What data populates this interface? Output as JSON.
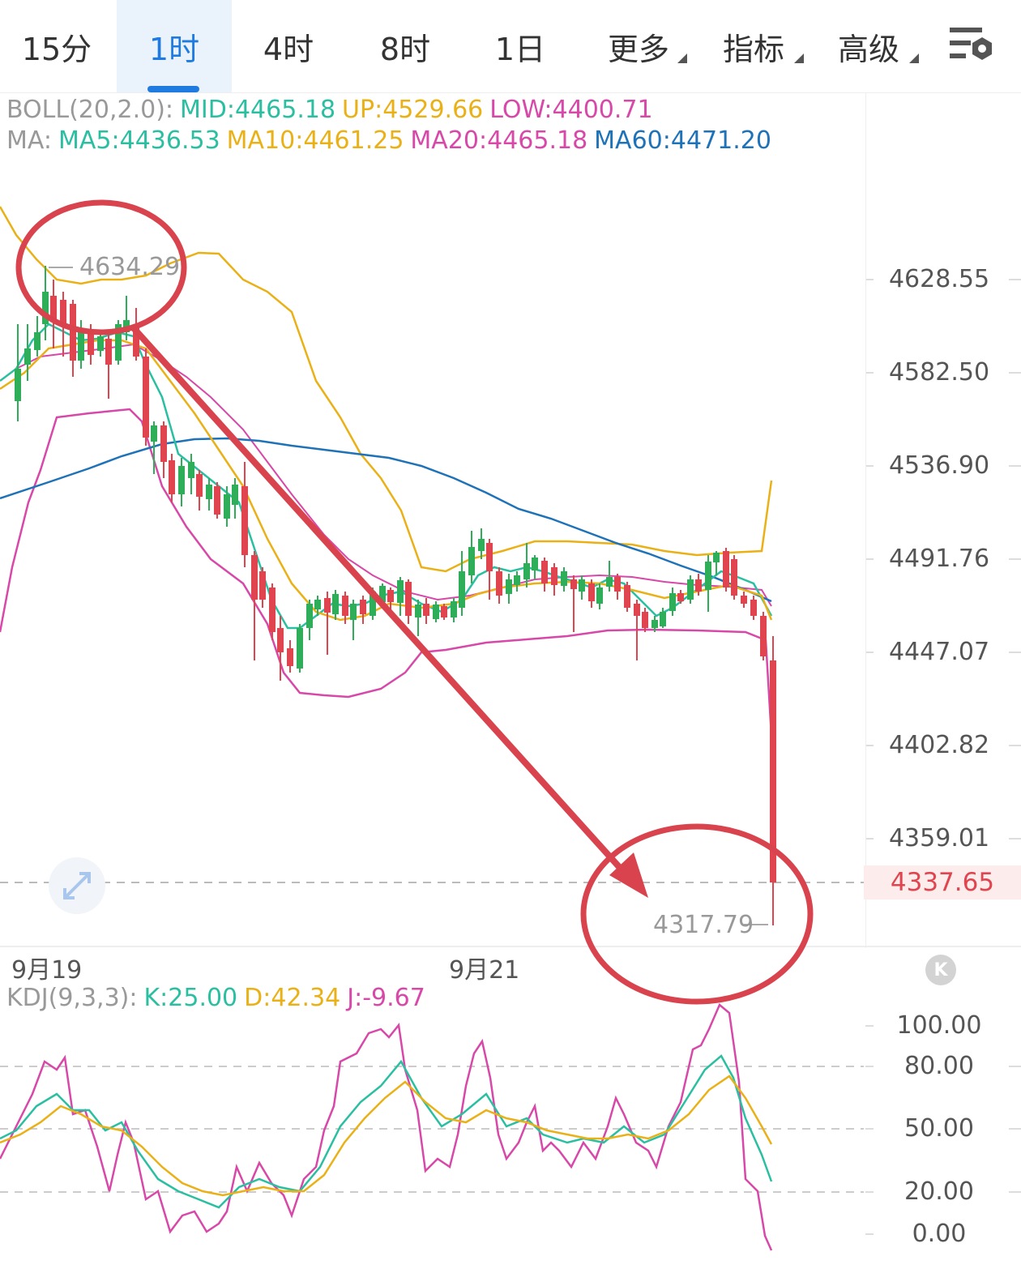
{
  "tabs": [
    {
      "label": "15分"
    },
    {
      "label": "1时",
      "active": true
    },
    {
      "label": "4时"
    },
    {
      "label": "8时"
    },
    {
      "label": "1日"
    },
    {
      "label": "更多",
      "dropdown": true
    },
    {
      "label": "指标",
      "dropdown": true
    },
    {
      "label": "高级",
      "dropdown": true
    }
  ],
  "settings_icon": "chart-settings-icon",
  "boll": {
    "label": "BOLL(20,2.0):",
    "mid": "MID:4465.18",
    "up": "UP:4529.66",
    "low": "LOW:4400.71"
  },
  "ma": {
    "label": "MA:",
    "ma5": "MA5:4436.53",
    "ma10": "MA10:4461.25",
    "ma20": "MA20:4465.18",
    "ma60": "MA60:4471.20"
  },
  "price_axis": [
    "4628.55",
    "4582.50",
    "4536.90",
    "4491.76",
    "4447.07",
    "4402.82",
    "4359.01"
  ],
  "current_price": "4337.65",
  "high_marker": "4634.29",
  "low_marker": "4317.79",
  "date_labels": [
    "9月19",
    "9月21"
  ],
  "kdj": {
    "label": "KDJ(9,3,3):",
    "k": "K:25.00",
    "d": "D:42.34",
    "j": "J:-9.67"
  },
  "kdj_axis": [
    "100.00",
    "80.00",
    "50.00",
    "20.00",
    "0.00"
  ],
  "colors": {
    "up": "#2fae5a",
    "down": "#e0454f",
    "ma5": "#2bbfa2",
    "ma10": "#eab117",
    "ma20": "#d848a8",
    "ma60": "#1e72b8",
    "annotation": "#d9434d",
    "accent": "#1f7be0"
  },
  "chart_data": {
    "type": "candlestick",
    "timeframe": "1时",
    "ylim": [
      4317.79,
      4634.29
    ],
    "price_high": 4634.29,
    "price_low": 4317.79,
    "last_price": 4337.65,
    "indicator": "KDJ(9,3,3)",
    "kdj_last": {
      "K": 25.0,
      "D": 42.34,
      "J": -9.67
    },
    "kdj_ylim": [
      0,
      100
    ]
  }
}
